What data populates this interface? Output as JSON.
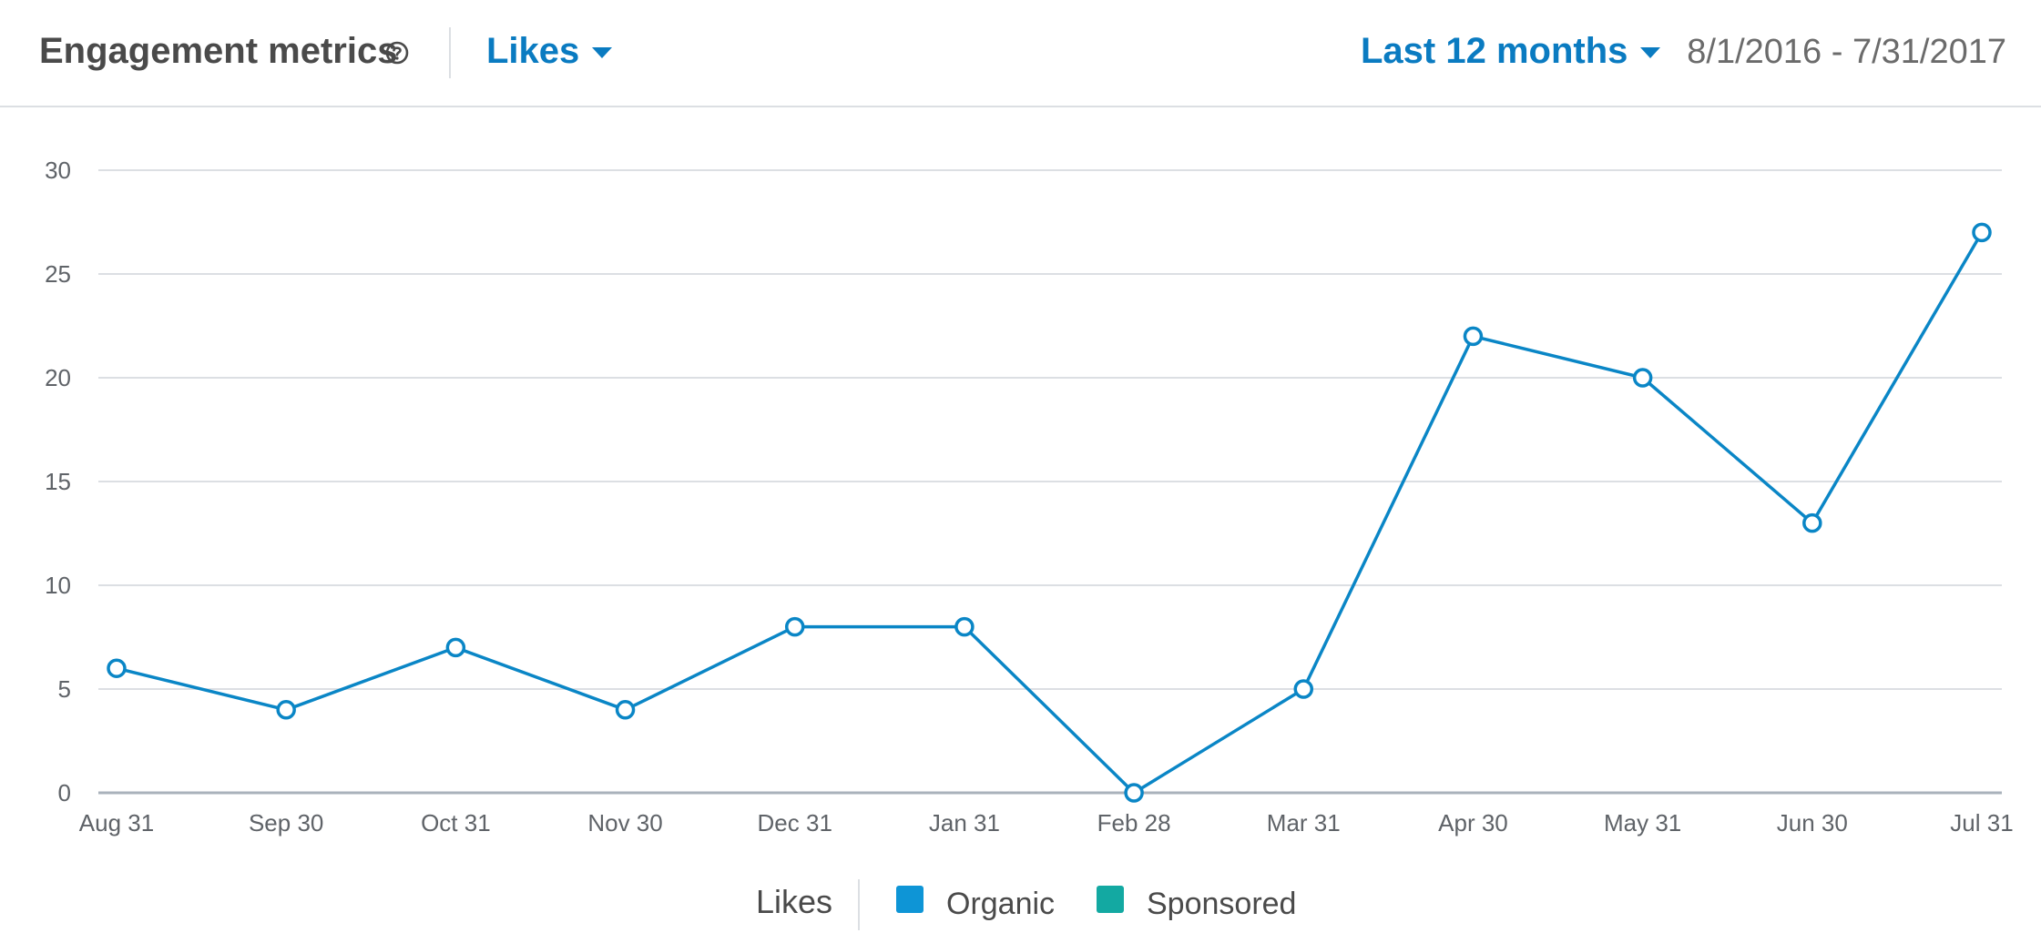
{
  "header": {
    "title": "Engagement metrics",
    "metric": "Likes",
    "range": "Last 12 months",
    "dates": "8/1/2016 - 7/31/2017"
  },
  "legend": {
    "title": "Likes",
    "items": [
      {
        "label": "Organic",
        "color": "#0e95d6"
      },
      {
        "label": "Sponsored",
        "color": "#13a9a2"
      }
    ]
  },
  "colors": {
    "line": "#0a86c6",
    "grid": "#dcdfe3",
    "axis": "#a9b2bb"
  },
  "chart_data": {
    "type": "line",
    "categories": [
      "Aug 31",
      "Sep 30",
      "Oct 31",
      "Nov 30",
      "Dec 31",
      "Jan 31",
      "Feb 28",
      "Mar 31",
      "Apr 30",
      "May 31",
      "Jun 30",
      "Jul 31"
    ],
    "series": [
      {
        "values": [
          6,
          4,
          7,
          4,
          8,
          8,
          0,
          5,
          22,
          20,
          13,
          27
        ]
      }
    ],
    "ylim": [
      0,
      30
    ],
    "yticks": [
      0,
      5,
      10,
      15,
      20,
      25,
      30
    ],
    "grid": true
  }
}
